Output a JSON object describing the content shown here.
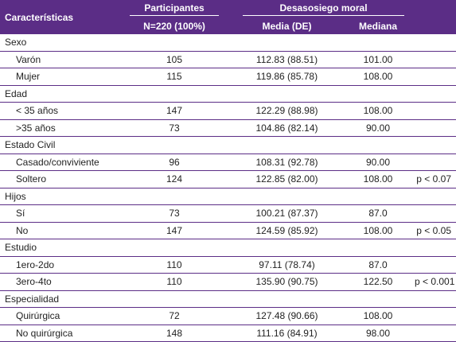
{
  "header": {
    "characteristics": "Características",
    "participants": "Participantes",
    "participants_sub": "N=220 (100%)",
    "moral_distress": "Desasosiego moral",
    "mean_label": "Media (DE)",
    "median_label": "Mediana"
  },
  "groups": [
    {
      "label": "Sexo",
      "rows": [
        {
          "label": "Varón",
          "n": "105",
          "mean": "112.83 (88.51)",
          "median": "101.00",
          "p": ""
        },
        {
          "label": "Mujer",
          "n": "115",
          "mean": "119.86 (85.78)",
          "median": "108.00",
          "p": ""
        }
      ]
    },
    {
      "label": "Edad",
      "rows": [
        {
          "label": "< 35 años",
          "n": "147",
          "mean": "122.29 (88.98)",
          "median": "108.00",
          "p": ""
        },
        {
          "label": ">35 años",
          "n": "73",
          "mean": "104.86 (82.14)",
          "median": "90.00",
          "p": ""
        }
      ]
    },
    {
      "label": "Estado Civil",
      "rows": [
        {
          "label": "Casado/conviviente",
          "n": "96",
          "mean": "108.31 (92.78)",
          "median": "90.00",
          "p": ""
        },
        {
          "label": "Soltero",
          "n": "124",
          "mean": "122.85 (82.00)",
          "median": "108.00",
          "p": "p < 0.07"
        }
      ]
    },
    {
      "label": "Hijos",
      "rows": [
        {
          "label": "Sí",
          "n": "73",
          "mean": "100.21 (87.37)",
          "median": "87.0",
          "p": ""
        },
        {
          "label": "No",
          "n": "147",
          "mean": "124.59 (85.92)",
          "median": "108.00",
          "p": "p < 0.05"
        }
      ]
    },
    {
      "label": "Estudio",
      "rows": [
        {
          "label": "1ero-2do",
          "n": "110",
          "mean": "97.11 (78.74)",
          "median": "87.0",
          "p": ""
        },
        {
          "label": "3ero-4to",
          "n": "110",
          "mean": "135.90 (90.75)",
          "median": "122.50",
          "p": "p < 0.001"
        }
      ]
    },
    {
      "label": "Especialidad",
      "rows": [
        {
          "label": "Quirúrgica",
          "n": "72",
          "mean": "127.48 (90.66)",
          "median": "108.00",
          "p": ""
        },
        {
          "label": "No quirúrgica",
          "n": "148",
          "mean": "111.16 (84.91)",
          "median": "98.00",
          "p": ""
        }
      ]
    }
  ]
}
